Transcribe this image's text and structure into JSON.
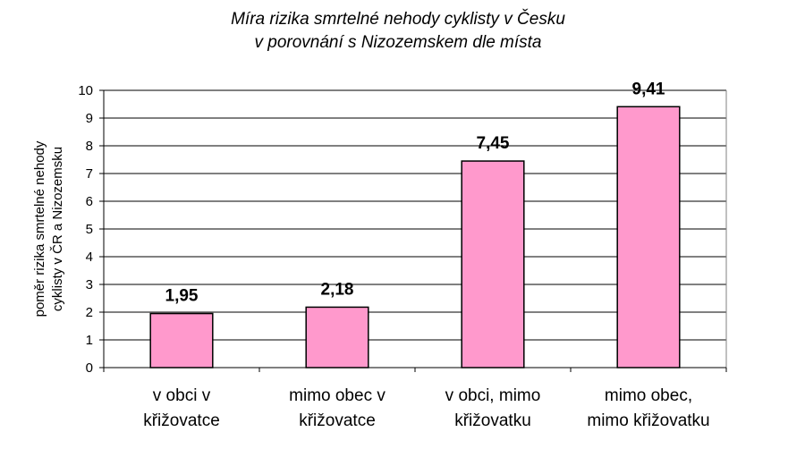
{
  "chart_data": {
    "type": "bar",
    "title": "Míra rizika smrtelné nehody cyklisty v Česku",
    "subtitle": "v porovnání s Nizozemskem dle místa",
    "ylabel": "poměr rizika smrtelné nehody",
    "ylabel2": "cyklisty v ČR a Nizozemsku",
    "xlabel": "",
    "ylim": [
      0,
      10
    ],
    "yticks": [
      0,
      1,
      2,
      3,
      4,
      5,
      6,
      7,
      8,
      9,
      10
    ],
    "grid": true,
    "categories": [
      [
        "v obci v",
        "křižovatce"
      ],
      [
        "mimo obec v",
        "křižovatce"
      ],
      [
        "v obci, mimo",
        "křižovatku"
      ],
      [
        "mimo obec,",
        "mimo křižovatku"
      ]
    ],
    "values": [
      1.95,
      2.18,
      7.45,
      9.41
    ],
    "value_labels": [
      "1,95",
      "2,18",
      "7,45",
      "9,41"
    ],
    "bar_color": "#ff99cc"
  }
}
